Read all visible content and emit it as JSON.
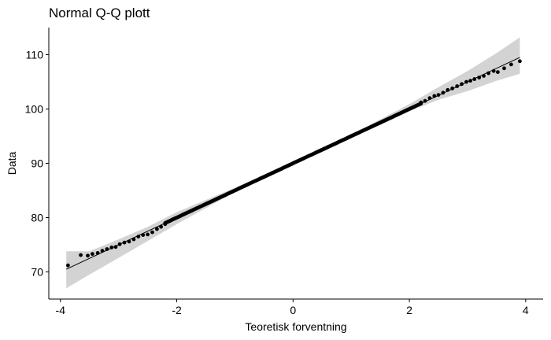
{
  "chart_data": {
    "type": "scatter",
    "title": "Normal Q-Q plott",
    "xlabel": "Teoretisk forventning",
    "ylabel": "Data",
    "xlim": [
      -4.2,
      4.3
    ],
    "ylim": [
      65,
      115
    ],
    "x_ticks": [
      -4,
      -2,
      0,
      2,
      4
    ],
    "y_ticks": [
      70,
      80,
      90,
      100,
      110
    ],
    "x_tick_labels": [
      "-4",
      "-2",
      "0",
      "2",
      "4"
    ],
    "y_tick_labels": [
      "70",
      "80",
      "90",
      "100",
      "110"
    ],
    "grid": false,
    "reference_line": {
      "intercept": 90,
      "slope": 5
    },
    "confidence_band": {
      "x": [
        -3.9,
        -3.5,
        -3.0,
        -2.5,
        -2.0,
        -1.0,
        0.0,
        1.0,
        2.0,
        2.5,
        3.0,
        3.5,
        3.9
      ],
      "lower": [
        67.0,
        69.5,
        72.6,
        75.7,
        78.8,
        84.7,
        89.7,
        94.6,
        99.6,
        101.7,
        103.3,
        105.2,
        106.5
      ],
      "upper": [
        73.8,
        73.8,
        76.0,
        78.3,
        81.0,
        85.5,
        90.3,
        95.3,
        100.9,
        104.0,
        107.0,
        110.3,
        113.2
      ]
    },
    "tail_points": [
      [
        -3.87,
        71.2
      ],
      [
        -3.65,
        73.1
      ],
      [
        -3.53,
        73.0
      ],
      [
        -3.45,
        73.3
      ],
      [
        -3.36,
        73.5
      ],
      [
        -3.28,
        73.9
      ],
      [
        -3.2,
        74.2
      ],
      [
        -3.12,
        74.5
      ],
      [
        -3.05,
        74.6
      ],
      [
        -2.98,
        75.1
      ],
      [
        -2.9,
        75.4
      ],
      [
        -2.82,
        75.6
      ],
      [
        -2.74,
        76.0
      ],
      [
        -2.66,
        76.5
      ],
      [
        -2.58,
        76.8
      ],
      [
        -2.5,
        76.9
      ],
      [
        -2.42,
        77.3
      ],
      [
        -2.34,
        77.9
      ],
      [
        -2.27,
        78.3
      ],
      [
        -2.2,
        78.8
      ],
      [
        2.2,
        101.2
      ],
      [
        2.27,
        101.5
      ],
      [
        2.35,
        102.0
      ],
      [
        2.43,
        102.4
      ],
      [
        2.5,
        102.6
      ],
      [
        2.58,
        103.0
      ],
      [
        2.66,
        103.5
      ],
      [
        2.74,
        103.8
      ],
      [
        2.82,
        104.2
      ],
      [
        2.9,
        104.6
      ],
      [
        2.98,
        105.0
      ],
      [
        3.05,
        105.2
      ],
      [
        3.12,
        105.5
      ],
      [
        3.2,
        105.8
      ],
      [
        3.28,
        106.1
      ],
      [
        3.36,
        106.6
      ],
      [
        3.45,
        107.0
      ],
      [
        3.52,
        106.8
      ],
      [
        3.63,
        107.5
      ],
      [
        3.75,
        108.2
      ],
      [
        3.9,
        108.8
      ]
    ],
    "central_points": {
      "x_from": -2.2,
      "x_to": 2.2,
      "count": 300
    }
  }
}
